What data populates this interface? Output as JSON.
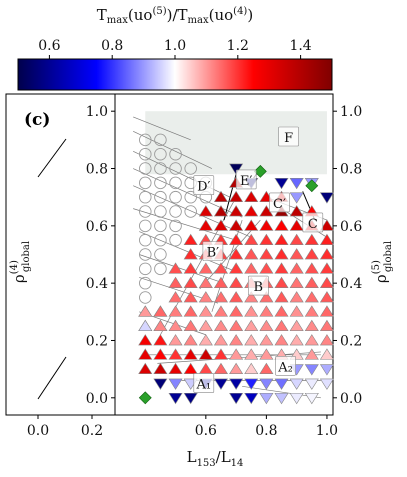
{
  "chart_data": {
    "type": "scatter",
    "panel_label": "(c)",
    "colorbar": {
      "label_parts": [
        "T",
        "max",
        "(uo",
        "(5)",
        ")/T",
        "max",
        "(uo",
        "(4)",
        ")"
      ],
      "range": [
        0.5,
        1.5
      ],
      "ticks": [
        "0.6",
        "0.8",
        "1.0",
        "1.2",
        "1.4"
      ],
      "tick_values": [
        0.6,
        0.8,
        1.0,
        1.2,
        1.4
      ],
      "colormap": "seismic"
    },
    "xlabel_parts": [
      "L",
      "153",
      "/L",
      "14"
    ],
    "ylabel_left_parts": [
      "ρ",
      "(4)",
      "global"
    ],
    "ylabel_right_parts": [
      "ρ",
      "(5)",
      "global"
    ],
    "xlim": [
      0.3,
      1.02
    ],
    "ylim": [
      -0.06,
      1.06
    ],
    "xticks": [
      "0.6",
      "0.8",
      "1.0"
    ],
    "xtick_values": [
      0.6,
      0.8,
      1.0
    ],
    "yticks": [
      "0.0",
      "0.2",
      "0.4",
      "0.6",
      "0.8",
      "1.0"
    ],
    "ytick_values": [
      0.0,
      0.2,
      0.4,
      0.6,
      0.8,
      1.0
    ],
    "inset_xticks": [
      "0.0",
      "0.2"
    ],
    "region_labels": [
      {
        "text": "F",
        "x": 0.87,
        "y": 0.91
      },
      {
        "text": "D′",
        "x": 0.59,
        "y": 0.74
      },
      {
        "text": "E′",
        "x": 0.73,
        "y": 0.76
      },
      {
        "text": "C′",
        "x": 0.84,
        "y": 0.68
      },
      {
        "text": "C",
        "x": 0.95,
        "y": 0.61
      },
      {
        "text": "B′",
        "x": 0.62,
        "y": 0.51
      },
      {
        "text": "B",
        "x": 0.77,
        "y": 0.39
      },
      {
        "text": "A₂",
        "x": 0.86,
        "y": 0.11
      },
      {
        "text": "A₁",
        "x": 0.59,
        "y": 0.05
      }
    ],
    "grid_x": [
      0.4,
      0.45,
      0.5,
      0.55,
      0.6,
      0.65,
      0.7,
      0.75,
      0.8,
      0.85,
      0.9,
      0.95,
      1.0
    ],
    "grid_y": [
      0.0,
      0.05,
      0.1,
      0.15,
      0.2,
      0.25,
      0.3,
      0.35,
      0.4,
      0.45,
      0.5,
      0.55,
      0.6,
      0.65,
      0.7,
      0.75,
      0.8,
      0.85,
      0.9
    ]
  }
}
